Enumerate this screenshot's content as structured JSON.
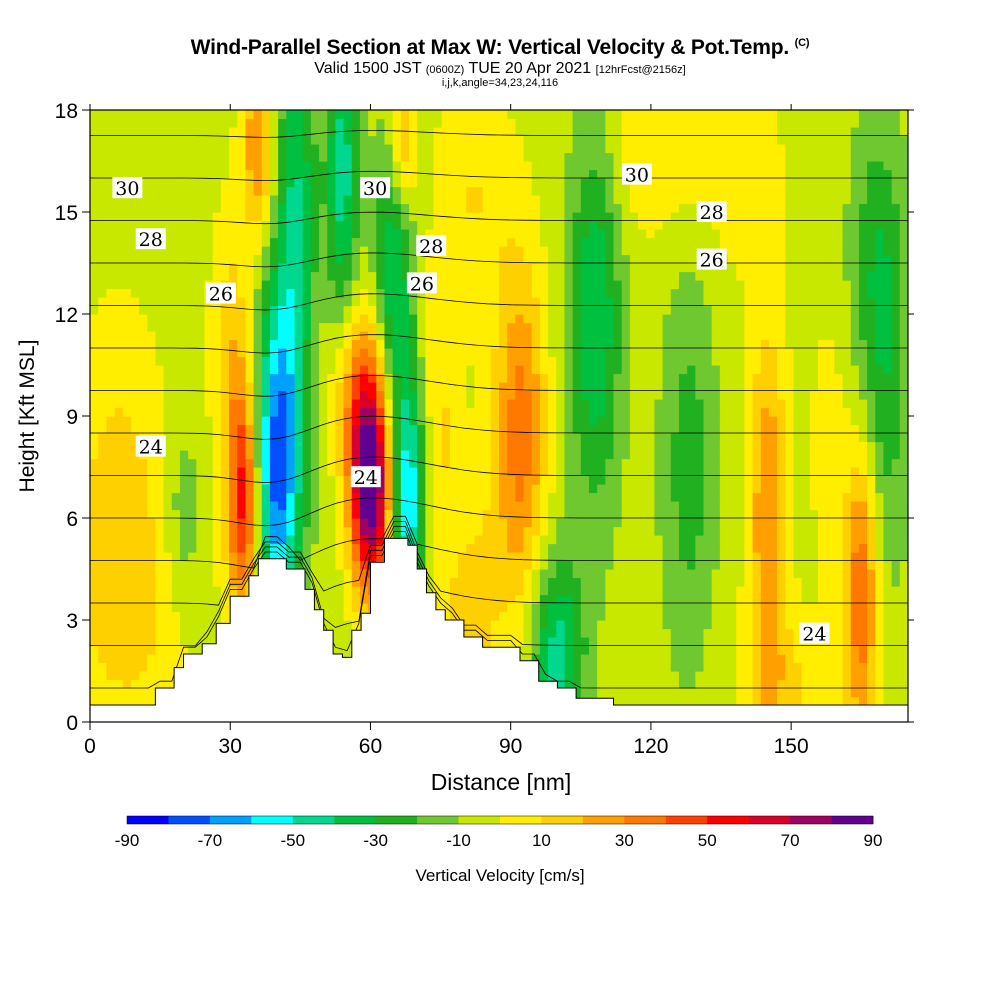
{
  "header": {
    "title": "Wind-Parallel Section at Max W: Vertical Velocity & Pot.Temp.",
    "copyright": "(C)",
    "valid_prefix": "Valid 1500 JST",
    "valid_utc": "(0600Z)",
    "valid_date": "TUE 20 Apr 2021",
    "forecast": "[12hrFcst@2156z]",
    "grid_info": "i,j,k,angle=34,23,24,116"
  },
  "chart_data": {
    "type": "heatmap",
    "title": "Wind-Parallel Section at Max W: Vertical Velocity & Pot.Temp.",
    "xlabel": "Distance [nm]",
    "ylabel": "Height [Kft MSL]",
    "xlim": [
      0,
      175
    ],
    "ylim": [
      0,
      18
    ],
    "x_ticks": [
      0,
      30,
      60,
      90,
      120,
      150
    ],
    "y_ticks": [
      0,
      3,
      6,
      9,
      12,
      15,
      18
    ],
    "colorbar": {
      "label": "Vertical Velocity [cm/s]",
      "tick_labels": [
        "-90",
        "-70",
        "-50",
        "-30",
        "-10",
        "10",
        "30",
        "50",
        "70",
        "90"
      ],
      "bounds": [
        -90,
        -80,
        -70,
        -60,
        -50,
        -40,
        -30,
        -20,
        -10,
        0,
        10,
        20,
        30,
        40,
        50,
        60,
        70,
        80,
        90
      ],
      "colors": [
        "#0000ff",
        "#0050ff",
        "#00a0ff",
        "#00ffff",
        "#00d890",
        "#00c040",
        "#20b020",
        "#70c830",
        "#c8e800",
        "#ffee00",
        "#ffd000",
        "#ffa000",
        "#ff7800",
        "#ff4000",
        "#ff0000",
        "#d8002a",
        "#a00060",
        "#600090"
      ]
    },
    "background_value": -5,
    "w_features": [
      {
        "x": 40,
        "y": 7.5,
        "sx": 3.5,
        "sy": 3.5,
        "w": -70
      },
      {
        "x": 44,
        "y": 15,
        "sx": 3.0,
        "sy": 4.5,
        "w": -35
      },
      {
        "x": 54,
        "y": 16,
        "sx": 2.5,
        "sy": 3.5,
        "w": -40
      },
      {
        "x": 65,
        "y": 13,
        "sx": 3.0,
        "sy": 3.0,
        "w": -35
      },
      {
        "x": 68,
        "y": 6.5,
        "sx": 2.5,
        "sy": 2.5,
        "w": -55
      },
      {
        "x": 60,
        "y": 7.0,
        "sx": 3.0,
        "sy": 2.2,
        "w": 100
      },
      {
        "x": 57,
        "y": 10,
        "sx": 4.0,
        "sy": 2.0,
        "w": 30
      },
      {
        "x": 33,
        "y": 6.5,
        "sx": 2.5,
        "sy": 2.5,
        "w": 60
      },
      {
        "x": 36,
        "y": 17,
        "sx": 2.5,
        "sy": 2.0,
        "w": 35
      },
      {
        "x": 30,
        "y": 11,
        "sx": 3.0,
        "sy": 3.0,
        "w": 20
      },
      {
        "x": 67,
        "y": 17,
        "sx": 2.0,
        "sy": 1.5,
        "w": 30
      },
      {
        "x": 92,
        "y": 8.5,
        "sx": 4.0,
        "sy": 3.5,
        "w": 40
      },
      {
        "x": 100,
        "y": 2.0,
        "sx": 4.0,
        "sy": 2.0,
        "w": -40
      },
      {
        "x": 108,
        "y": 12,
        "sx": 4.0,
        "sy": 4.0,
        "w": -35
      },
      {
        "x": 128,
        "y": 7.5,
        "sx": 4.0,
        "sy": 4.0,
        "w": -20
      },
      {
        "x": 145,
        "y": 6.0,
        "sx": 3.0,
        "sy": 4.0,
        "w": 35
      },
      {
        "x": 165,
        "y": 4.0,
        "sx": 2.5,
        "sy": 3.0,
        "w": 45
      },
      {
        "x": 158,
        "y": 8.0,
        "sx": 3.0,
        "sy": 3.0,
        "w": 10
      },
      {
        "x": 170,
        "y": 10,
        "sx": 4.0,
        "sy": 4.0,
        "w": -20
      },
      {
        "x": 168,
        "y": 14,
        "sx": 4.0,
        "sy": 3.0,
        "w": -15
      },
      {
        "x": 8,
        "y": 3.0,
        "sx": 10.0,
        "sy": 3.0,
        "w": 15
      },
      {
        "x": 6,
        "y": 7.5,
        "sx": 7.0,
        "sy": 3.5,
        "w": 15
      },
      {
        "x": 82,
        "y": 4.0,
        "sx": 5.0,
        "sy": 2.5,
        "w": 15
      },
      {
        "x": 120,
        "y": 17,
        "sx": 8.0,
        "sy": 2.0,
        "w": 15
      },
      {
        "x": 82,
        "y": 15.5,
        "sx": 6.0,
        "sy": 2.5,
        "w": 15
      },
      {
        "x": 150,
        "y": 1.0,
        "sx": 8.0,
        "sy": 1.5,
        "w": 15
      },
      {
        "x": 75,
        "y": 9.0,
        "sx": 3.0,
        "sy": 3.0,
        "w": 15
      },
      {
        "x": 20,
        "y": 6.0,
        "sx": 3.0,
        "sy": 2.0,
        "w": -15
      },
      {
        "x": 140,
        "y": 16,
        "sx": 6.0,
        "sy": 2.0,
        "w": 12
      },
      {
        "x": 80,
        "y": 1.5,
        "sx": 4.0,
        "sy": 1.5,
        "w": 10
      }
    ],
    "terrain_kft": [
      [
        0,
        0.5
      ],
      [
        12,
        0.5
      ],
      [
        13,
        0.5
      ],
      [
        14,
        1.0
      ],
      [
        18,
        1.6
      ],
      [
        20,
        2.0
      ],
      [
        24,
        2.3
      ],
      [
        27,
        2.9
      ],
      [
        30,
        3.7
      ],
      [
        34,
        4.3
      ],
      [
        36,
        4.8
      ],
      [
        42,
        4.5
      ],
      [
        46,
        3.9
      ],
      [
        48,
        3.3
      ],
      [
        50,
        2.7
      ],
      [
        52,
        2.0
      ],
      [
        54,
        1.9
      ],
      [
        56,
        2.7
      ],
      [
        58,
        3.2
      ],
      [
        60,
        4.7
      ],
      [
        63,
        5.4
      ],
      [
        68,
        5.2
      ],
      [
        70,
        4.5
      ],
      [
        72,
        3.8
      ],
      [
        74,
        3.3
      ],
      [
        76,
        3.0
      ],
      [
        80,
        2.5
      ],
      [
        84,
        2.2
      ],
      [
        92,
        1.8
      ],
      [
        96,
        1.2
      ],
      [
        100,
        1.0
      ],
      [
        104,
        0.7
      ],
      [
        112,
        0.5
      ],
      [
        175,
        0.5
      ]
    ],
    "theta_contour_values": [
      24,
      26,
      28,
      30
    ],
    "theta_contour_labels": [
      {
        "x": 8,
        "y": 15.7,
        "text": "30"
      },
      {
        "x": 13,
        "y": 14.2,
        "text": "28"
      },
      {
        "x": 28,
        "y": 12.6,
        "text": "26"
      },
      {
        "x": 13,
        "y": 8.1,
        "text": "24"
      },
      {
        "x": 59,
        "y": 7.2,
        "text": "24"
      },
      {
        "x": 61,
        "y": 15.7,
        "text": "30"
      },
      {
        "x": 73,
        "y": 14.0,
        "text": "28"
      },
      {
        "x": 71,
        "y": 12.9,
        "text": "26"
      },
      {
        "x": 117,
        "y": 16.1,
        "text": "30"
      },
      {
        "x": 133,
        "y": 15.0,
        "text": "28"
      },
      {
        "x": 133,
        "y": 13.6,
        "text": "26"
      },
      {
        "x": 155,
        "y": 2.6,
        "text": "24"
      }
    ]
  }
}
